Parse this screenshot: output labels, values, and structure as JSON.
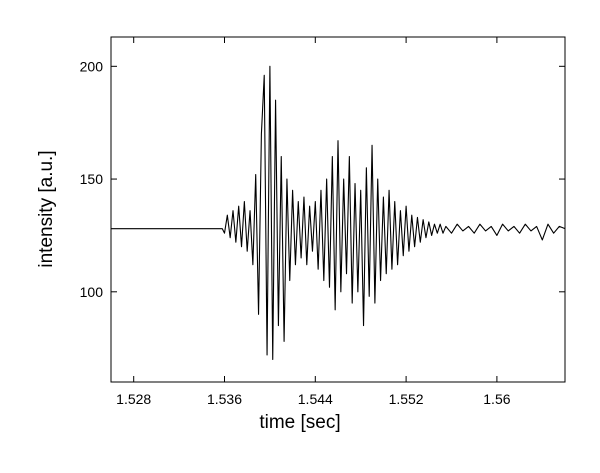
{
  "chart_data": {
    "type": "line",
    "x_label": "time [sec]",
    "y_label": "intensity [a.u.]",
    "x": [
      1.526,
      1.5358,
      1.536,
      1.53625,
      1.5365,
      1.53675,
      1.537,
      1.53725,
      1.5375,
      1.53775,
      1.538,
      1.53825,
      1.5385,
      1.53875,
      1.539,
      1.53925,
      1.5395,
      1.53975,
      1.54,
      1.54025,
      1.5405,
      1.54075,
      1.541,
      1.54125,
      1.5415,
      1.54175,
      1.542,
      1.54225,
      1.5425,
      1.54275,
      1.543,
      1.54325,
      1.5435,
      1.54375,
      1.544,
      1.54425,
      1.5445,
      1.54475,
      1.545,
      1.54525,
      1.5455,
      1.54575,
      1.546,
      1.54625,
      1.5465,
      1.54675,
      1.547,
      1.54725,
      1.5475,
      1.54775,
      1.548,
      1.54825,
      1.5485,
      1.54875,
      1.549,
      1.54925,
      1.5495,
      1.54975,
      1.55,
      1.55025,
      1.5505,
      1.55075,
      1.551,
      1.55125,
      1.5515,
      1.55175,
      1.552,
      1.55225,
      1.5525,
      1.55275,
      1.553,
      1.55325,
      1.5535,
      1.55375,
      1.554,
      1.55425,
      1.5545,
      1.55475,
      1.555,
      1.55525,
      1.5555,
      1.556,
      1.5565,
      1.557,
      1.5575,
      1.558,
      1.5585,
      1.559,
      1.5595,
      1.56,
      1.5605,
      1.561,
      1.5615,
      1.562,
      1.5625,
      1.563,
      1.5635,
      1.564,
      1.5645,
      1.565,
      1.5655,
      1.566
    ],
    "values": [
      128,
      128,
      126,
      134,
      124,
      136,
      122,
      138,
      120,
      140,
      118,
      136,
      112,
      152,
      90,
      170,
      196,
      72,
      200,
      70,
      185,
      85,
      160,
      78,
      150,
      105,
      145,
      112,
      140,
      115,
      142,
      112,
      138,
      118,
      140,
      110,
      145,
      105,
      150,
      102,
      160,
      92,
      167,
      100,
      150,
      108,
      160,
      95,
      148,
      100,
      145,
      85,
      155,
      98,
      165,
      95,
      150,
      105,
      142,
      108,
      145,
      110,
      140,
      112,
      136,
      116,
      138,
      118,
      134,
      120,
      133,
      122,
      132,
      124,
      131,
      125,
      130,
      126,
      130,
      126,
      129,
      126,
      130,
      127,
      129,
      126,
      130,
      127,
      129,
      125,
      130,
      127,
      129,
      126,
      130,
      127,
      129,
      123,
      130,
      126,
      129,
      128
    ],
    "color": "#000000",
    "xlim": [
      1.526,
      1.566
    ],
    "ylim": [
      60,
      213
    ],
    "xticks": [
      1.528,
      1.536,
      1.544,
      1.552,
      1.56
    ],
    "yticks": [
      100,
      150,
      200
    ]
  }
}
